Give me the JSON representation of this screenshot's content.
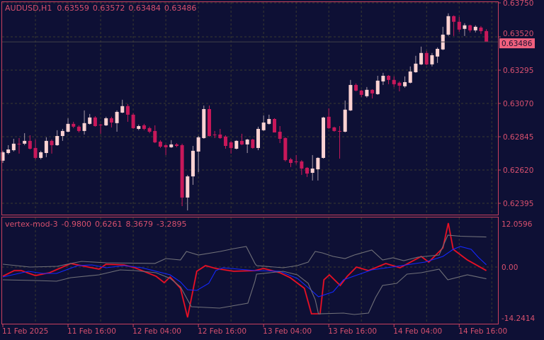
{
  "colors": {
    "background": "#0e1035",
    "text": "#d8506e",
    "border": "#c8405e",
    "grid": "#3a3a30",
    "bull": "#fcd2d2",
    "bear": "#c8185a",
    "price_tag": "#f0607e",
    "fast_line": "#ff1020",
    "slow_line": "#1428ff",
    "band": "#707078"
  },
  "chart_data": [
    {
      "type": "candlestick",
      "title": "AUDUSD,H1",
      "ohlc_header": [
        "0.63559",
        "0.63572",
        "0.63484",
        "0.63486"
      ],
      "current_price_label": "0.63486",
      "current_price": 0.63486,
      "ylim": [
        0.62395,
        0.6375
      ],
      "y_ticks": [
        "0.63750",
        "0.63520",
        "0.63295",
        "0.63070",
        "0.62845",
        "0.62620",
        "0.62395"
      ],
      "grid": true,
      "x_ticks": [
        "11 Feb 2025",
        "11 Feb 16:00",
        "12 Feb 04:00",
        "12 Feb 16:00",
        "13 Feb 04:00",
        "13 Feb 16:00",
        "14 Feb 04:00",
        "14 Feb 16:00"
      ],
      "ohlc": [
        [
          0.62683,
          0.6275,
          0.62668,
          0.6274
        ],
        [
          0.62735,
          0.62788,
          0.62726,
          0.62759
        ],
        [
          0.62754,
          0.62831,
          0.62745,
          0.62798
        ],
        [
          0.62798,
          0.62836,
          0.62731,
          0.62795
        ],
        [
          0.62798,
          0.62869,
          0.62788,
          0.62817
        ],
        [
          0.62817,
          0.62855,
          0.62759,
          0.62764
        ],
        [
          0.62769,
          0.62826,
          0.62692,
          0.62702
        ],
        [
          0.62702,
          0.6275,
          0.62692,
          0.6274
        ],
        [
          0.62735,
          0.62841,
          0.62707,
          0.62817
        ],
        [
          0.62817,
          0.62826,
          0.62731,
          0.62788
        ],
        [
          0.62788,
          0.62889,
          0.62783,
          0.6285
        ],
        [
          0.6285,
          0.62898,
          0.62817,
          0.62884
        ],
        [
          0.62879,
          0.6297,
          0.62874,
          0.62932
        ],
        [
          0.62932,
          0.62946,
          0.62903,
          0.62913
        ],
        [
          0.62913,
          0.62922,
          0.62874,
          0.62884
        ],
        [
          0.62884,
          0.63023,
          0.6286,
          0.62937
        ],
        [
          0.62932,
          0.62999,
          0.62927,
          0.62975
        ],
        [
          0.62975,
          0.62984,
          0.62913,
          0.62917
        ],
        [
          0.62927,
          0.62932,
          0.62865,
          0.62925
        ],
        [
          0.62922,
          0.6298,
          0.62917,
          0.6297
        ],
        [
          0.6297,
          0.6298,
          0.62908,
          0.62941
        ],
        [
          0.62937,
          0.63023,
          0.62879,
          0.63013
        ],
        [
          0.63008,
          0.63095,
          0.63004,
          0.63052
        ],
        [
          0.63052,
          0.63066,
          0.62946,
          0.62994
        ],
        [
          0.62994,
          0.63004,
          0.62898,
          0.62903
        ],
        [
          0.62898,
          0.62927,
          0.62889,
          0.62917
        ],
        [
          0.62922,
          0.62932,
          0.62889,
          0.62898
        ],
        [
          0.62903,
          0.62913,
          0.62869,
          0.62879
        ],
        [
          0.62884,
          0.62922,
          0.62802,
          0.62807
        ],
        [
          0.62812,
          0.62822,
          0.62769,
          0.62778
        ],
        [
          0.62788,
          0.62793,
          0.62721,
          0.62774
        ],
        [
          0.62774,
          0.62822,
          0.62769,
          0.62793
        ],
        [
          0.62793,
          0.62802,
          0.62774,
          0.62783
        ],
        [
          0.62788,
          0.62798,
          0.62376,
          0.62434
        ],
        [
          0.62434,
          0.62587,
          0.62347,
          0.62577
        ],
        [
          0.62577,
          0.62783,
          0.6252,
          0.6275
        ],
        [
          0.62745,
          0.6285,
          0.62606,
          0.62841
        ],
        [
          0.62836,
          0.63056,
          0.62831,
          0.63032
        ],
        [
          0.63032,
          0.63056,
          0.62846,
          0.6285
        ],
        [
          0.6286,
          0.62884,
          0.62836,
          0.62858
        ],
        [
          0.6286,
          0.62898,
          0.62831,
          0.62836
        ],
        [
          0.62846,
          0.62855,
          0.62764,
          0.62783
        ],
        [
          0.62807,
          0.62817,
          0.62731,
          0.62769
        ],
        [
          0.62764,
          0.62822,
          0.62759,
          0.62817
        ],
        [
          0.62817,
          0.62865,
          0.62788,
          0.62793
        ],
        [
          0.62793,
          0.62831,
          0.62735,
          0.62826
        ],
        [
          0.62826,
          0.62831,
          0.62764,
          0.62769
        ],
        [
          0.62769,
          0.62913,
          0.62754,
          0.62898
        ],
        [
          0.62889,
          0.62989,
          0.62884,
          0.62941
        ],
        [
          0.62932,
          0.62994,
          0.62927,
          0.62965
        ],
        [
          0.62965,
          0.6297,
          0.62874,
          0.62874
        ],
        [
          0.62879,
          0.62917,
          0.62802,
          0.62831
        ],
        [
          0.62836,
          0.62841,
          0.62678,
          0.62687
        ],
        [
          0.62692,
          0.62702,
          0.6264,
          0.62668
        ],
        [
          0.62678,
          0.62721,
          0.62659,
          0.62676
        ],
        [
          0.62678,
          0.62687,
          0.62587,
          0.6263
        ],
        [
          0.62635,
          0.6264,
          0.62573,
          0.62596
        ],
        [
          0.62601,
          0.62721,
          0.62549,
          0.6263
        ],
        [
          0.62625,
          0.62707,
          0.62549,
          0.62702
        ],
        [
          0.62702,
          0.6298,
          0.62697,
          0.62975
        ],
        [
          0.6298,
          0.63037,
          0.62898,
          0.62903
        ],
        [
          0.62908,
          0.62913,
          0.62879,
          0.62884
        ],
        [
          0.62884,
          0.62917,
          0.62697,
          0.62882
        ],
        [
          0.62879,
          0.6309,
          0.62874,
          0.63028
        ],
        [
          0.63023,
          0.63229,
          0.63018,
          0.63195
        ],
        [
          0.63195,
          0.63205,
          0.63152,
          0.63157
        ],
        [
          0.63157,
          0.63162,
          0.63114,
          0.63128
        ],
        [
          0.63119,
          0.63181,
          0.63109,
          0.63162
        ],
        [
          0.63162,
          0.63166,
          0.63104,
          0.63138
        ],
        [
          0.63133,
          0.63257,
          0.63128,
          0.63224
        ],
        [
          0.63219,
          0.63277,
          0.63195,
          0.63257
        ],
        [
          0.63257,
          0.63262,
          0.632,
          0.63229
        ],
        [
          0.63229,
          0.63253,
          0.63181,
          0.632
        ],
        [
          0.6321,
          0.63219,
          0.63152,
          0.6319
        ],
        [
          0.63186,
          0.63253,
          0.63176,
          0.63214
        ],
        [
          0.6321,
          0.6332,
          0.63205,
          0.63286
        ],
        [
          0.63281,
          0.63392,
          0.63277,
          0.63339
        ],
        [
          0.63334,
          0.63454,
          0.63329,
          0.63411
        ],
        [
          0.63411,
          0.63425,
          0.63329,
          0.63334
        ],
        [
          0.63334,
          0.63411,
          0.6332,
          0.63396
        ],
        [
          0.63387,
          0.63449,
          0.63344,
          0.63439
        ],
        [
          0.63435,
          0.63588,
          0.6343,
          0.63535
        ],
        [
          0.63535,
          0.63679,
          0.63526,
          0.6366
        ],
        [
          0.6366,
          0.63665,
          0.63526,
          0.63622
        ],
        [
          0.63622,
          0.63655,
          0.63554,
          0.63569
        ],
        [
          0.63574,
          0.63612,
          0.63526,
          0.63598
        ],
        [
          0.63598,
          0.63602,
          0.6355,
          0.63564
        ],
        [
          0.63564,
          0.63598,
          0.6355,
          0.63588
        ],
        [
          0.63583,
          0.63593,
          0.6354,
          0.63559
        ],
        [
          0.63559,
          0.63572,
          0.63484,
          0.63486
        ]
      ]
    },
    {
      "type": "line",
      "title": "vertex-mod-3",
      "header_values": [
        "-0.9800",
        "0.6261",
        "8.3679",
        "-3.2895"
      ],
      "ylim": [
        -14.2414,
        12.0596
      ],
      "y_ticks": [
        "12.0596",
        "0.00",
        "-14.2414"
      ],
      "series": [
        {
          "key": "fast",
          "color": "#ff1020",
          "points": [
            [
              0,
              -2.57
            ],
            [
              2.1,
              -0.99
            ],
            [
              3.4,
              -0.99
            ],
            [
              6,
              -2.37
            ],
            [
              8.6,
              -1.58
            ],
            [
              12.5,
              0.99
            ],
            [
              15.1,
              0.2
            ],
            [
              17.7,
              -0.59
            ],
            [
              19,
              0.79
            ],
            [
              22.3,
              0.59
            ],
            [
              24.3,
              -0.2
            ],
            [
              28.2,
              -2.57
            ],
            [
              29.7,
              -4.35
            ],
            [
              30.8,
              -2.77
            ],
            [
              32.7,
              -5.93
            ],
            [
              34,
              -14.03
            ],
            [
              35.7,
              -1.19
            ],
            [
              37.3,
              0.4
            ],
            [
              39.2,
              -0.4
            ],
            [
              42.5,
              -1.19
            ],
            [
              46.4,
              -0.99
            ],
            [
              48,
              -0.4
            ],
            [
              51,
              -1.58
            ],
            [
              52.9,
              -2.96
            ],
            [
              55.5,
              -5.93
            ],
            [
              56.8,
              -13.04
            ],
            [
              58.4,
              -13.04
            ],
            [
              59.1,
              -3.56
            ],
            [
              60.1,
              -2.17
            ],
            [
              62.1,
              -5.14
            ],
            [
              63.4,
              -2.57
            ],
            [
              65.1,
              0
            ],
            [
              67.3,
              -0.99
            ],
            [
              70.5,
              0.99
            ],
            [
              73.1,
              -0.2
            ],
            [
              77,
              2.96
            ],
            [
              78.4,
              1.38
            ],
            [
              81,
              5.34
            ],
            [
              82,
              12.25
            ],
            [
              82.9,
              4.94
            ],
            [
              85.5,
              1.98
            ],
            [
              89,
              -0.98
            ]
          ]
        },
        {
          "key": "slow",
          "color": "#1428ff",
          "points": [
            [
              0,
              -2.77
            ],
            [
              4.7,
              -1.19
            ],
            [
              7.3,
              -1.78
            ],
            [
              9.9,
              -1.78
            ],
            [
              13.8,
              0.4
            ],
            [
              16.4,
              0.59
            ],
            [
              19,
              -0.2
            ],
            [
              22.3,
              0.4
            ],
            [
              25.6,
              -0.2
            ],
            [
              30.8,
              -2.17
            ],
            [
              32.7,
              -4.15
            ],
            [
              34,
              -6.32
            ],
            [
              35.7,
              -6.52
            ],
            [
              37.9,
              -4.55
            ],
            [
              39.2,
              -0.99
            ],
            [
              40.5,
              -0.2
            ],
            [
              46.4,
              -0.99
            ],
            [
              51,
              -1.19
            ],
            [
              54.2,
              -3.16
            ],
            [
              56.8,
              -6.52
            ],
            [
              58.1,
              -8.3
            ],
            [
              60.8,
              -6.92
            ],
            [
              62.7,
              -3.56
            ],
            [
              65.3,
              -2.17
            ],
            [
              67.9,
              -0.79
            ],
            [
              72.5,
              0.2
            ],
            [
              77.7,
              1.38
            ],
            [
              81,
              2.96
            ],
            [
              82.9,
              4.94
            ],
            [
              84.2,
              5.73
            ],
            [
              86.2,
              4.94
            ],
            [
              87.5,
              2.77
            ],
            [
              89,
              0.63
            ]
          ]
        },
        {
          "key": "upper",
          "color": "#707078",
          "points": [
            [
              0,
              0.79
            ],
            [
              5,
              0
            ],
            [
              10,
              0.2
            ],
            [
              12.5,
              1.0
            ],
            [
              14.5,
              1.58
            ],
            [
              19,
              1.19
            ],
            [
              28,
              1.0
            ],
            [
              30,
              2.37
            ],
            [
              32.7,
              1.98
            ],
            [
              33.8,
              4.35
            ],
            [
              36,
              3.36
            ],
            [
              40,
              4.35
            ],
            [
              42.5,
              5.14
            ],
            [
              44.8,
              5.73
            ],
            [
              46.4,
              1.0
            ],
            [
              46.7,
              0.4
            ],
            [
              51.6,
              -0.2
            ],
            [
              54.2,
              0.4
            ],
            [
              56.2,
              1.38
            ],
            [
              57.5,
              4.35
            ],
            [
              58.8,
              3.95
            ],
            [
              60.8,
              2.96
            ],
            [
              63,
              2.37
            ],
            [
              64.7,
              3.36
            ],
            [
              67.9,
              4.74
            ],
            [
              69.9,
              1.98
            ],
            [
              71.8,
              2.57
            ],
            [
              73.8,
              1.78
            ],
            [
              76.4,
              2.77
            ],
            [
              77.7,
              2.96
            ],
            [
              80.3,
              3.36
            ],
            [
              81.9,
              8.89
            ],
            [
              84.2,
              8.6
            ],
            [
              89,
              8.37
            ]
          ]
        },
        {
          "key": "lower",
          "color": "#707078",
          "points": [
            [
              0,
              -3.56
            ],
            [
              6,
              -3.75
            ],
            [
              9.9,
              -3.95
            ],
            [
              12.5,
              -2.96
            ],
            [
              17.7,
              -2.17
            ],
            [
              21.6,
              -0.79
            ],
            [
              24.3,
              -0.99
            ],
            [
              28.2,
              -1.58
            ],
            [
              30.8,
              -3.16
            ],
            [
              32.7,
              -5.53
            ],
            [
              34.7,
              -11.07
            ],
            [
              39.9,
              -11.46
            ],
            [
              45.1,
              -10.08
            ],
            [
              46.4,
              -3.95
            ],
            [
              46.7,
              -1.98
            ],
            [
              51.6,
              -1.19
            ],
            [
              54.2,
              -2.17
            ],
            [
              56.2,
              -4.55
            ],
            [
              57.5,
              -9.09
            ],
            [
              58.1,
              -13.04
            ],
            [
              62.7,
              -12.85
            ],
            [
              64.7,
              -13.24
            ],
            [
              67.3,
              -12.85
            ],
            [
              68.6,
              -8.5
            ],
            [
              69.9,
              -5.14
            ],
            [
              72.5,
              -4.55
            ],
            [
              74.4,
              -1.98
            ],
            [
              77,
              -1.58
            ],
            [
              80.3,
              -0.59
            ],
            [
              81.9,
              -3.56
            ],
            [
              85.5,
              -2.17
            ],
            [
              89,
              -3.29
            ]
          ]
        }
      ]
    }
  ]
}
